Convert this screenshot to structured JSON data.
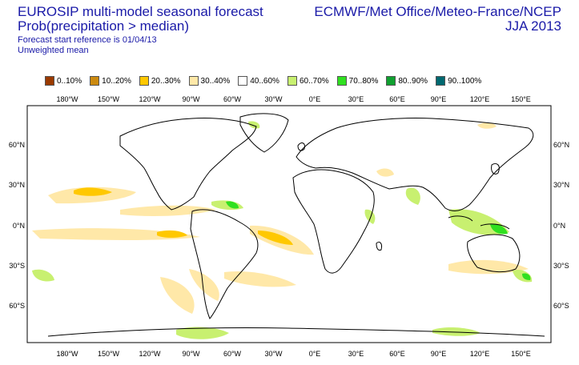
{
  "title": {
    "line1": "EUROSIP multi-model seasonal forecast",
    "line2": "Prob(precipitation > median)",
    "line3": "Forecast start reference is 01/04/13",
    "line4": "Unweighted mean"
  },
  "source": {
    "line1": "ECMWF/Met Office/Meteo-France/NCEP",
    "line2": "JJA 2013"
  },
  "legend": [
    {
      "label": "0..10%",
      "color": "#9a3a00"
    },
    {
      "label": "10..20%",
      "color": "#cc8a10"
    },
    {
      "label": "20..30%",
      "color": "#ffc800"
    },
    {
      "label": "30..40%",
      "color": "#ffe8a8"
    },
    {
      "label": "40..60%",
      "color": "#ffffff"
    },
    {
      "label": "60..70%",
      "color": "#c8f070"
    },
    {
      "label": "70..80%",
      "color": "#30e020"
    },
    {
      "label": "80..90%",
      "color": "#10a030"
    },
    {
      "label": "90..100%",
      "color": "#006870"
    }
  ],
  "axes": {
    "lon_labels": [
      "180°W",
      "150°W",
      "120°W",
      "90°W",
      "60°W",
      "30°W",
      "0°E",
      "30°E",
      "60°E",
      "90°E",
      "120°E",
      "150°E"
    ],
    "lat_labels": [
      "60°N",
      "30°N",
      "0°N",
      "30°S",
      "60°S"
    ]
  }
}
